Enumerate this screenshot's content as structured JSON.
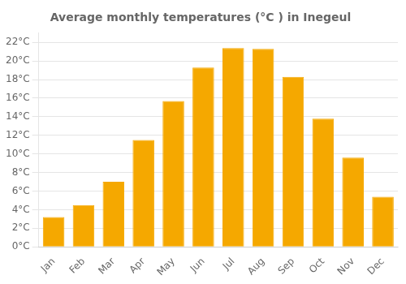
{
  "chart_data": {
    "type": "bar",
    "title": "Average monthly temperatures (°C ) in Inegeul",
    "categories": [
      "Jan",
      "Feb",
      "Mar",
      "Apr",
      "May",
      "Jun",
      "Jul",
      "Aug",
      "Sep",
      "Oct",
      "Nov",
      "Dec"
    ],
    "values": [
      3.2,
      4.5,
      7.0,
      11.5,
      15.7,
      19.3,
      21.4,
      21.3,
      18.3,
      13.8,
      9.6,
      5.4
    ],
    "color": "#F5A800",
    "ylim": [
      0,
      23
    ],
    "yticks": [
      {
        "value": 0,
        "label": "0°C"
      },
      {
        "value": 2,
        "label": "2°C"
      },
      {
        "value": 4,
        "label": "4°C"
      },
      {
        "value": 6,
        "label": "6°C"
      },
      {
        "value": 8,
        "label": "8°C"
      },
      {
        "value": 10,
        "label": "10°C"
      },
      {
        "value": 12,
        "label": "12°C"
      },
      {
        "value": 14,
        "label": "14°C"
      },
      {
        "value": 16,
        "label": "16°C"
      },
      {
        "value": 18,
        "label": "18°C"
      },
      {
        "value": 20,
        "label": "20°C"
      },
      {
        "value": 22,
        "label": "22°C"
      }
    ],
    "grid": true
  }
}
